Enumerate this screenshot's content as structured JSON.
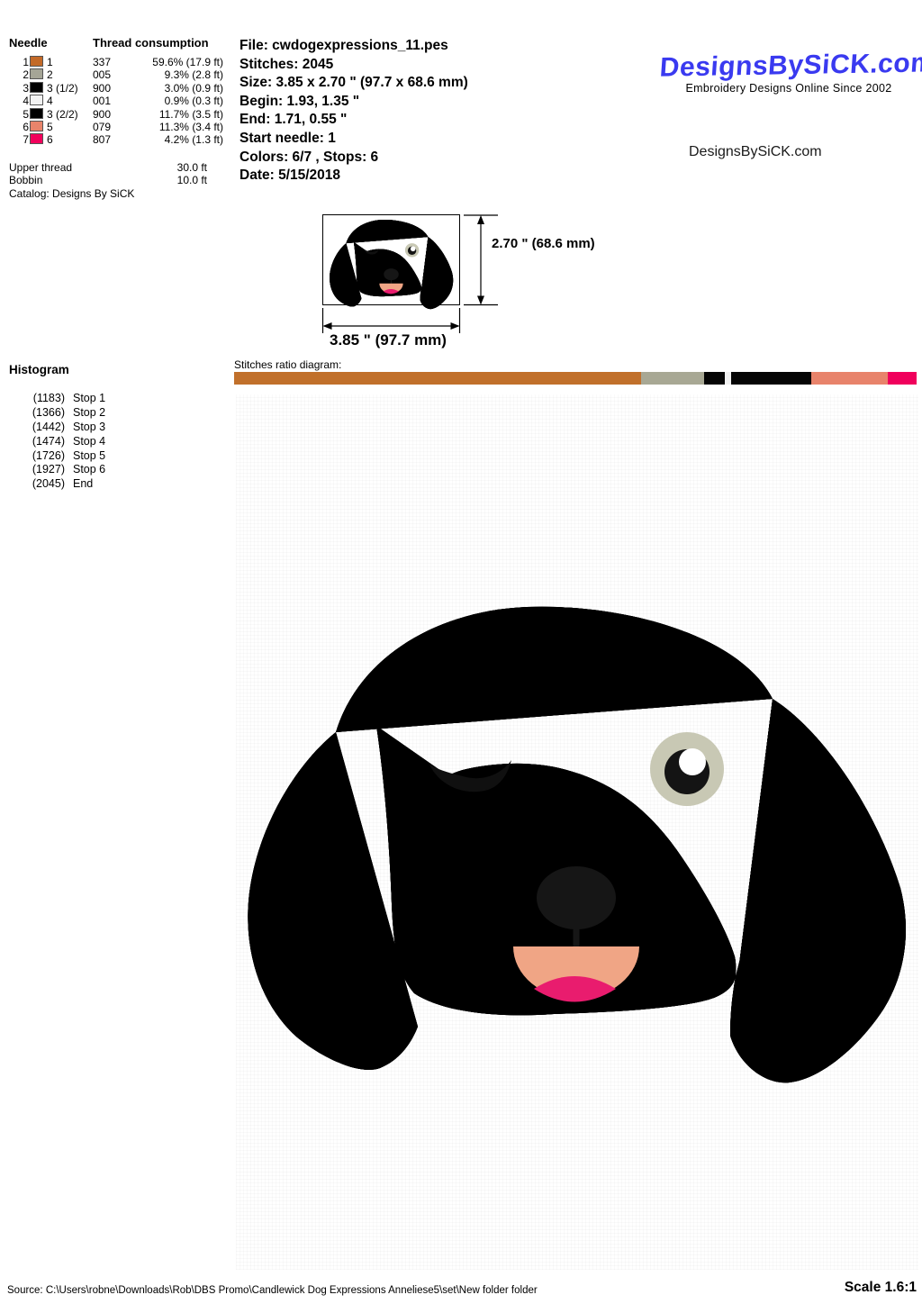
{
  "needle_table": {
    "header_needle": "Needle",
    "header_thread": "Thread consumption",
    "rows": [
      {
        "num": "1",
        "color": "#C36A28",
        "name": "1",
        "stitches": "337",
        "consumption": "59.6% (17.9 ft)"
      },
      {
        "num": "2",
        "color": "#A5A596",
        "name": "2",
        "stitches": "005",
        "consumption": "9.3% (2.8 ft)"
      },
      {
        "num": "3",
        "color": "#000000",
        "name": "3 (1/2)",
        "stitches": "900",
        "consumption": "3.0% (0.9 ft)"
      },
      {
        "num": "4",
        "color": "#F2F2F2",
        "name": "4",
        "stitches": "001",
        "consumption": "0.9% (0.3 ft)"
      },
      {
        "num": "5",
        "color": "#000000",
        "name": "3 (2/2)",
        "stitches": "900",
        "consumption": "11.7% (3.5 ft)"
      },
      {
        "num": "6",
        "color": "#E8846B",
        "name": "5",
        "stitches": "079",
        "consumption": "11.3% (3.4 ft)"
      },
      {
        "num": "7",
        "color": "#F2005C",
        "name": "6",
        "stitches": "807",
        "consumption": "4.2% (1.3 ft)"
      }
    ],
    "upper_thread_label": "Upper thread",
    "upper_thread_value": "30.0 ft",
    "bobbin_label": "Bobbin",
    "bobbin_value": "10.0 ft",
    "catalog_line": "Catalog: Designs By SiCK"
  },
  "file_info": {
    "lines": [
      "File: cwdogexpressions_11.pes",
      "Stitches: 2045",
      "Size: 3.85 x 2.70 \" (97.7 x 68.6 mm)",
      "Begin: 1.93, 1.35 \"",
      "End: 1.71, 0.55 \"",
      "Start needle: 1",
      "Colors: 6/7 , Stops: 6",
      "Date: 5/15/2018"
    ]
  },
  "branding": {
    "logo_text": "DesignsBySiCK.com",
    "logo_color": "#3A3AF0",
    "tagline": "Embroidery Designs Online Since 2002",
    "website": "DesignsBySiCK.com"
  },
  "preview": {
    "height_label": "2.70 \" (68.6 mm)",
    "width_label": "3.85 \" (97.7 mm)"
  },
  "histogram": {
    "title": "Histogram",
    "stops": [
      {
        "count": "(1183)",
        "label": "Stop 1"
      },
      {
        "count": "(1366)",
        "label": "Stop 2"
      },
      {
        "count": "(1442)",
        "label": "Stop 3"
      },
      {
        "count": "(1474)",
        "label": "Stop 4"
      },
      {
        "count": "(1726)",
        "label": "Stop 5"
      },
      {
        "count": "(1927)",
        "label": "Stop 6"
      },
      {
        "count": "(2045)",
        "label": "End"
      }
    ]
  },
  "ratio_diagram": {
    "label": "Stitches ratio diagram:",
    "segments": [
      {
        "color": "#C1702B",
        "pct": 59.6
      },
      {
        "color": "#A8A894",
        "pct": 9.3
      },
      {
        "color": "#050505",
        "pct": 3.0
      },
      {
        "color": "#F0F0F0",
        "pct": 0.9
      },
      {
        "color": "#050505",
        "pct": 11.7
      },
      {
        "color": "#E8836B",
        "pct": 11.3
      },
      {
        "color": "#F0005C",
        "pct": 4.2
      }
    ]
  },
  "design_colors": {
    "bead": "#C36A28",
    "eye_ring": "#C8C8B4",
    "pupil": "#141414",
    "highlight": "#ffffff",
    "nose": "#161616",
    "mouth": "#F0A585",
    "tongue": "#E91C6E",
    "wink": "#101010"
  },
  "footer": {
    "source": "Source: C:\\Users\\robne\\Downloads\\Rob\\DBS Promo\\Candlewick Dog Expressions  Anneliese5\\set\\New folder folder",
    "scale": "Scale 1.6:1"
  }
}
